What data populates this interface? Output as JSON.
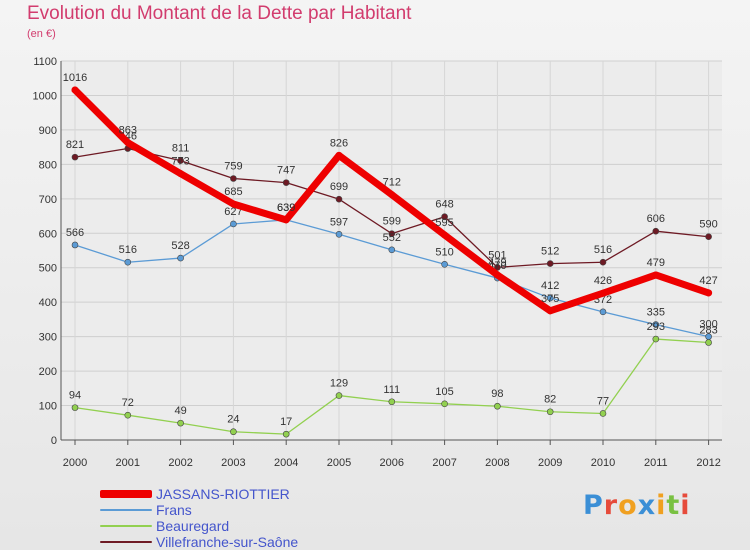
{
  "header": {
    "title": "Evolution du Montant de la Dette par Habitant",
    "unit": "(en €)"
  },
  "chart_data": {
    "type": "line",
    "title": "Evolution du Montant de la Dette par Habitant",
    "ylabel": "(en €)",
    "xlabel": "",
    "ylim": [
      0,
      1100
    ],
    "y_ticks": [
      0,
      100,
      200,
      300,
      400,
      500,
      600,
      700,
      800,
      900,
      1000,
      1100
    ],
    "x": [
      "2000",
      "2001",
      "2002",
      "2003",
      "2004",
      "2005",
      "2006",
      "2007",
      "2008",
      "2009",
      "2010",
      "2011",
      "2012"
    ],
    "grid": true,
    "legend_position": "bottom-left",
    "series": [
      {
        "name": "Villefranche-sur-Saône",
        "color": "#6e1a24",
        "values": [
          821,
          846,
          811,
          759,
          747,
          699,
          599,
          648,
          501,
          512,
          516,
          606,
          590
        ]
      },
      {
        "name": "Frans",
        "color": "#5b9bd5",
        "values": [
          566,
          516,
          528,
          627,
          639,
          597,
          552,
          510,
          470,
          412,
          372,
          335,
          300
        ]
      },
      {
        "name": "Beauregard",
        "color": "#92d050",
        "values": [
          94,
          72,
          49,
          24,
          17,
          129,
          111,
          105,
          98,
          82,
          77,
          293,
          283
        ]
      },
      {
        "name": "JASSANS-RIOTTIER",
        "color": "#ee0000",
        "values": [
          1016,
          863,
          773,
          685,
          639,
          826,
          712,
          595,
          479,
          375,
          426,
          479,
          427
        ]
      }
    ]
  },
  "legend": [
    {
      "name": "JASSANS-RIOTTIER",
      "color": "#ee0000"
    },
    {
      "name": "Frans",
      "color": "#5b9bd5"
    },
    {
      "name": "Beauregard",
      "color": "#92d050"
    },
    {
      "name": "Villefranche-sur-Saône",
      "color": "#6e1a24"
    }
  ],
  "logo": {
    "letters": [
      "P",
      "r",
      "o",
      "x",
      "i",
      "t",
      "i"
    ],
    "colors": [
      "#3b8fd6",
      "#e64b3b",
      "#f0a020",
      "#3b8fd6",
      "#f0a020",
      "#79c142",
      "#e64b3b"
    ]
  }
}
